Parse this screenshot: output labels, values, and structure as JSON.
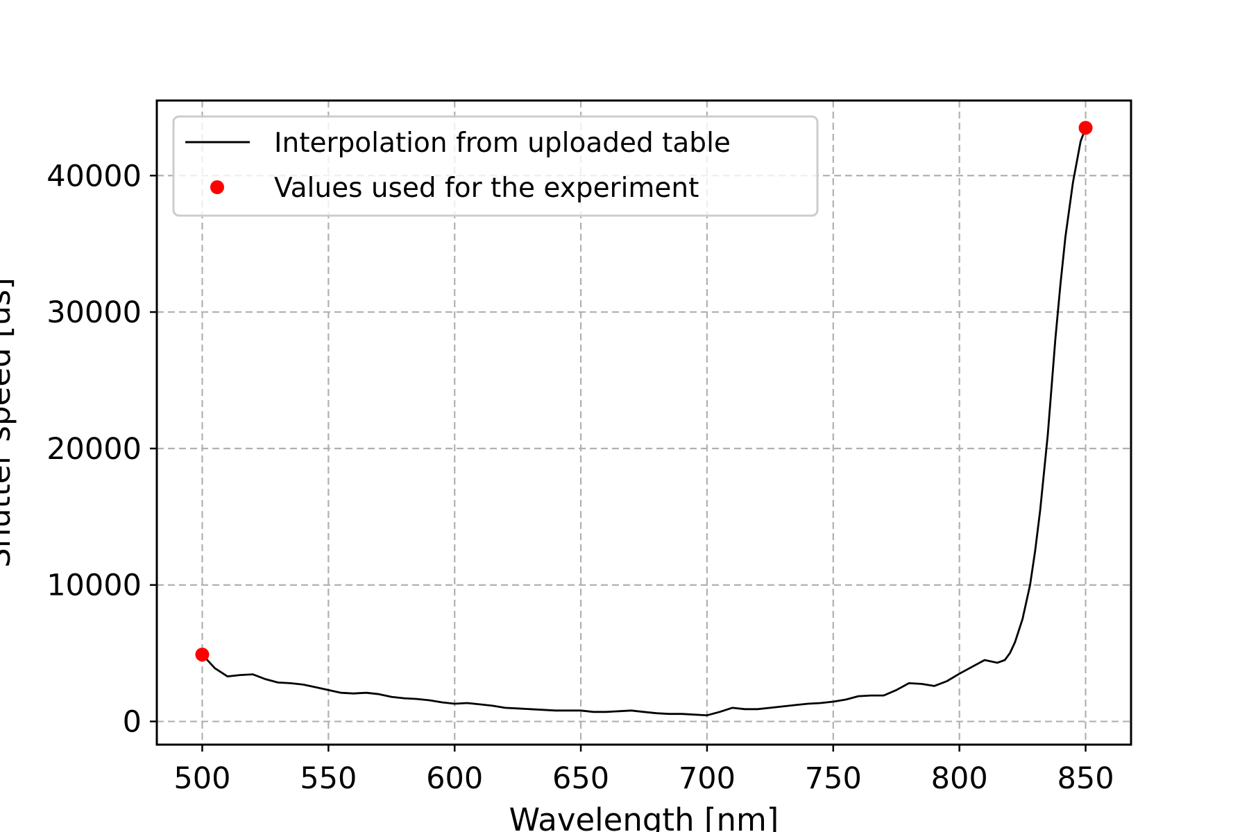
{
  "chart_data": {
    "type": "line",
    "title": "",
    "xlabel": "Wavelength [nm]",
    "ylabel": "Shutter speed [us]",
    "xlim": [
      482,
      868
    ],
    "ylim": [
      -1700,
      45500
    ],
    "grid": true,
    "legend_position": "upper-left",
    "x_ticks": [
      500,
      550,
      600,
      650,
      700,
      750,
      800,
      850
    ],
    "y_ticks": [
      0,
      10000,
      20000,
      30000,
      40000
    ],
    "x_tick_labels": [
      "500",
      "550",
      "600",
      "650",
      "700",
      "750",
      "800",
      "850"
    ],
    "y_tick_labels": [
      "0",
      "10000",
      "20000",
      "30000",
      "40000"
    ],
    "series": [
      {
        "name": "Interpolation from uploaded table",
        "kind": "line",
        "color": "#000000",
        "x": [
          500,
          505,
          510,
          515,
          520,
          525,
          530,
          535,
          540,
          545,
          550,
          555,
          560,
          565,
          570,
          575,
          580,
          585,
          590,
          595,
          600,
          605,
          610,
          615,
          620,
          625,
          630,
          635,
          640,
          645,
          650,
          655,
          660,
          665,
          670,
          675,
          680,
          685,
          690,
          695,
          700,
          705,
          710,
          715,
          720,
          725,
          730,
          735,
          740,
          745,
          750,
          755,
          760,
          765,
          770,
          775,
          780,
          785,
          790,
          795,
          800,
          805,
          810,
          815,
          818,
          820,
          822,
          825,
          828,
          830,
          832,
          835,
          838,
          840,
          842,
          845,
          848,
          850
        ],
        "y": [
          4900,
          3900,
          3300,
          3400,
          3450,
          3100,
          2850,
          2800,
          2700,
          2500,
          2300,
          2100,
          2050,
          2100,
          2000,
          1800,
          1700,
          1650,
          1550,
          1400,
          1300,
          1350,
          1250,
          1150,
          1000,
          950,
          900,
          850,
          800,
          800,
          800,
          700,
          700,
          750,
          800,
          700,
          600,
          550,
          550,
          500,
          450,
          700,
          1000,
          900,
          900,
          1000,
          1100,
          1200,
          1300,
          1350,
          1450,
          1600,
          1850,
          1900,
          1900,
          2300,
          2800,
          2750,
          2600,
          2950,
          3500,
          4000,
          4500,
          4300,
          4500,
          5000,
          5800,
          7500,
          10000,
          12500,
          15500,
          21000,
          28000,
          32000,
          35500,
          39500,
          42500,
          43500
        ]
      },
      {
        "name": "Values used for the experiment",
        "kind": "scatter",
        "color": "#ff0000",
        "x": [
          500,
          850
        ],
        "y": [
          4900,
          43500
        ]
      }
    ]
  }
}
